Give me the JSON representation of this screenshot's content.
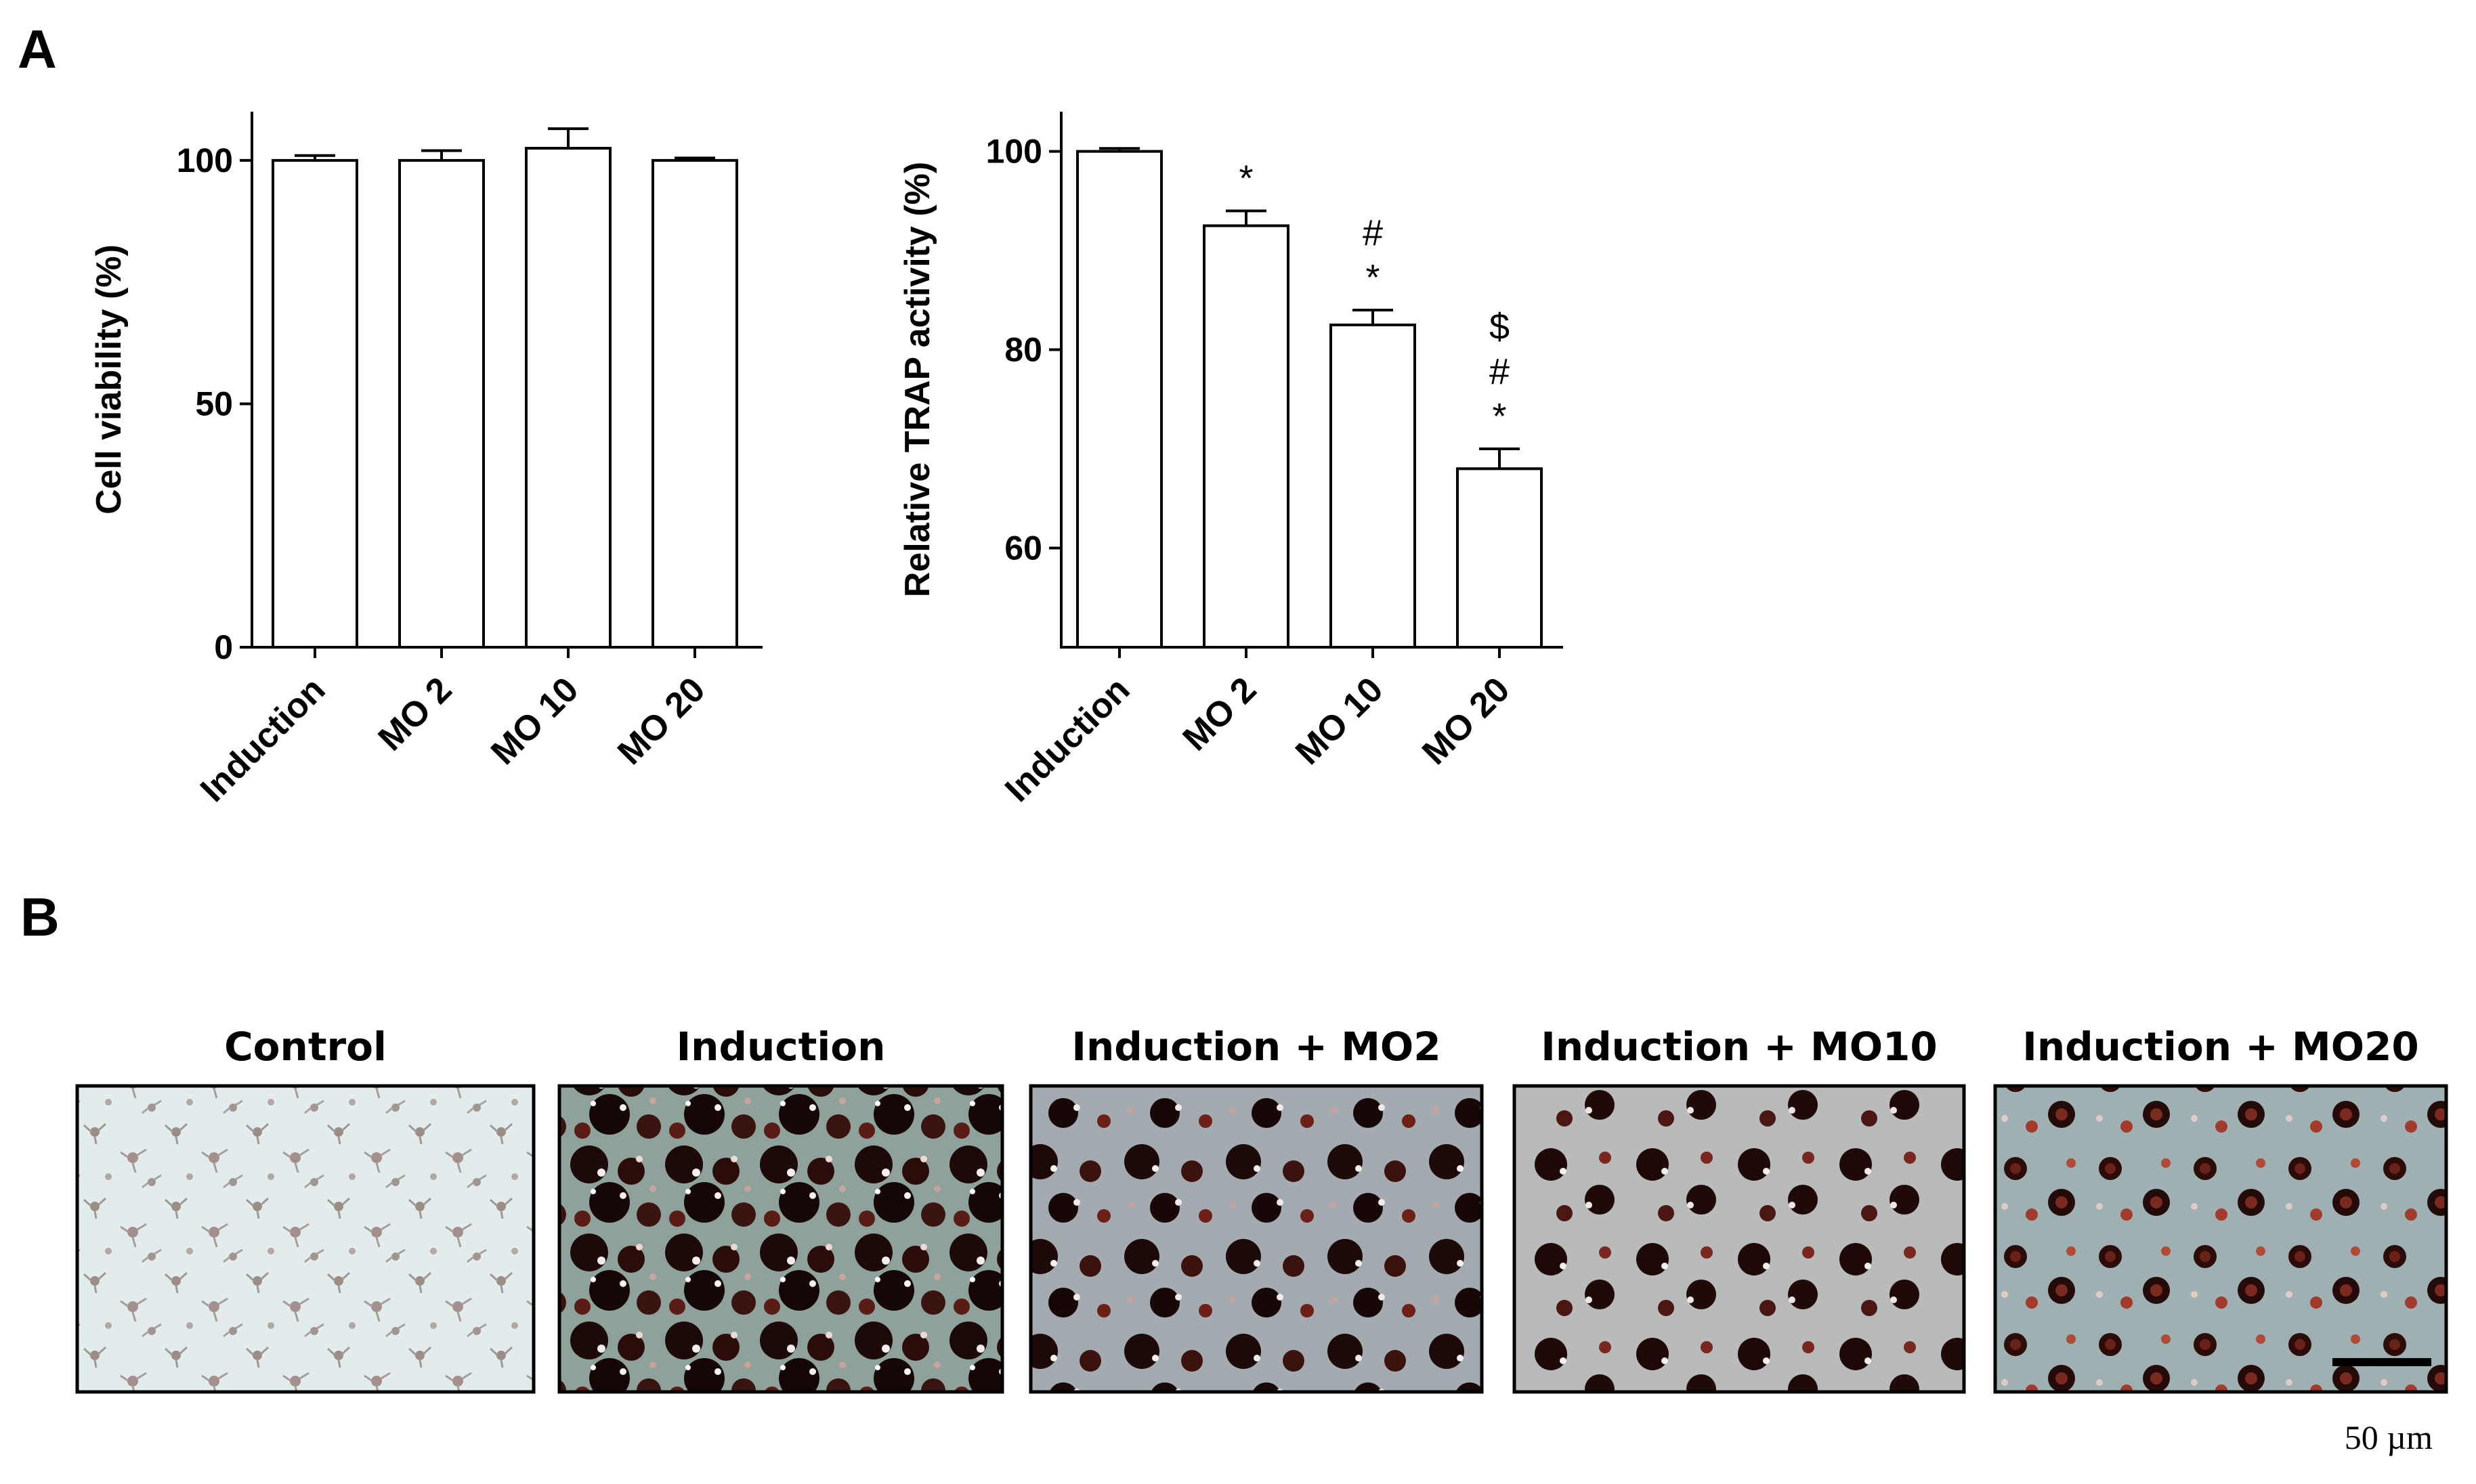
{
  "panel_labels": {
    "a": "A",
    "b": "B"
  },
  "chart_data": [
    {
      "type": "bar",
      "ylabel": "Cell viability (%)",
      "xlabel": "",
      "categories": [
        "Induction",
        "MO 2",
        "MO 10",
        "MO 20"
      ],
      "values": [
        100,
        100,
        102.5,
        100
      ],
      "errors": [
        1,
        2,
        4,
        0.5
      ],
      "ylim": [
        0,
        110
      ],
      "yticks": [
        "0",
        "50",
        "100"
      ],
      "ytick_values": [
        0,
        50,
        100
      ],
      "annotations": [
        [],
        [],
        [],
        []
      ],
      "bar_color": "#ffffff",
      "grid": false
    },
    {
      "type": "bar",
      "ylabel": "Relative TRAP activity (%)",
      "xlabel": "",
      "categories": [
        "Induction",
        "MO 2",
        "MO 10",
        "MO 20"
      ],
      "values": [
        100,
        92.5,
        82.5,
        68
      ],
      "errors": [
        0.3,
        1.5,
        1.5,
        2
      ],
      "ylim": [
        50,
        104
      ],
      "yticks": [
        "60",
        "80",
        "100"
      ],
      "ytick_values": [
        60,
        80,
        100
      ],
      "annotations": [
        [],
        [
          "*"
        ],
        [
          "#",
          "*"
        ],
        [
          "$",
          "#",
          "*"
        ]
      ],
      "bar_color": "#ffffff",
      "grid": false
    }
  ],
  "micrographs": {
    "titles": [
      "Control",
      "Induction",
      "Induction + MO2",
      "Induction + MO10",
      "Induction + MO20"
    ],
    "scale_bar_label": "50 µm"
  }
}
